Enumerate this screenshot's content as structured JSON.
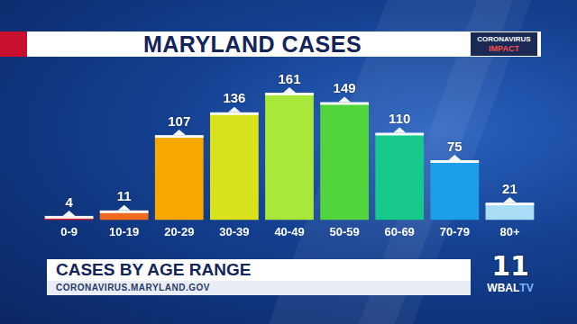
{
  "chart_data": {
    "type": "bar",
    "title": "MARYLAND CASES",
    "categories": [
      "0-9",
      "10-19",
      "20-29",
      "30-39",
      "40-49",
      "50-59",
      "60-69",
      "70-79",
      "80+"
    ],
    "values": [
      4,
      11,
      107,
      136,
      161,
      149,
      110,
      75,
      21
    ],
    "colors": [
      "#e8202a",
      "#f26a1b",
      "#f7a800",
      "#d9e21c",
      "#a8e83a",
      "#52d43c",
      "#18c98c",
      "#1c9ee8",
      "#a9ddf5"
    ],
    "ylim": [
      0,
      200
    ],
    "grid": false,
    "data_labels": true,
    "tick_labels": "x"
  },
  "page": {
    "badge": [
      "CORONAVIRUS",
      "IMPACT"
    ],
    "lower_third": {
      "title": "CASES BY AGE RANGE",
      "source": "CORONAVIRUS.MARYLAND.GOV"
    },
    "logo": {
      "channel": "11",
      "name": "WBAL",
      "suffix": "TV"
    }
  }
}
